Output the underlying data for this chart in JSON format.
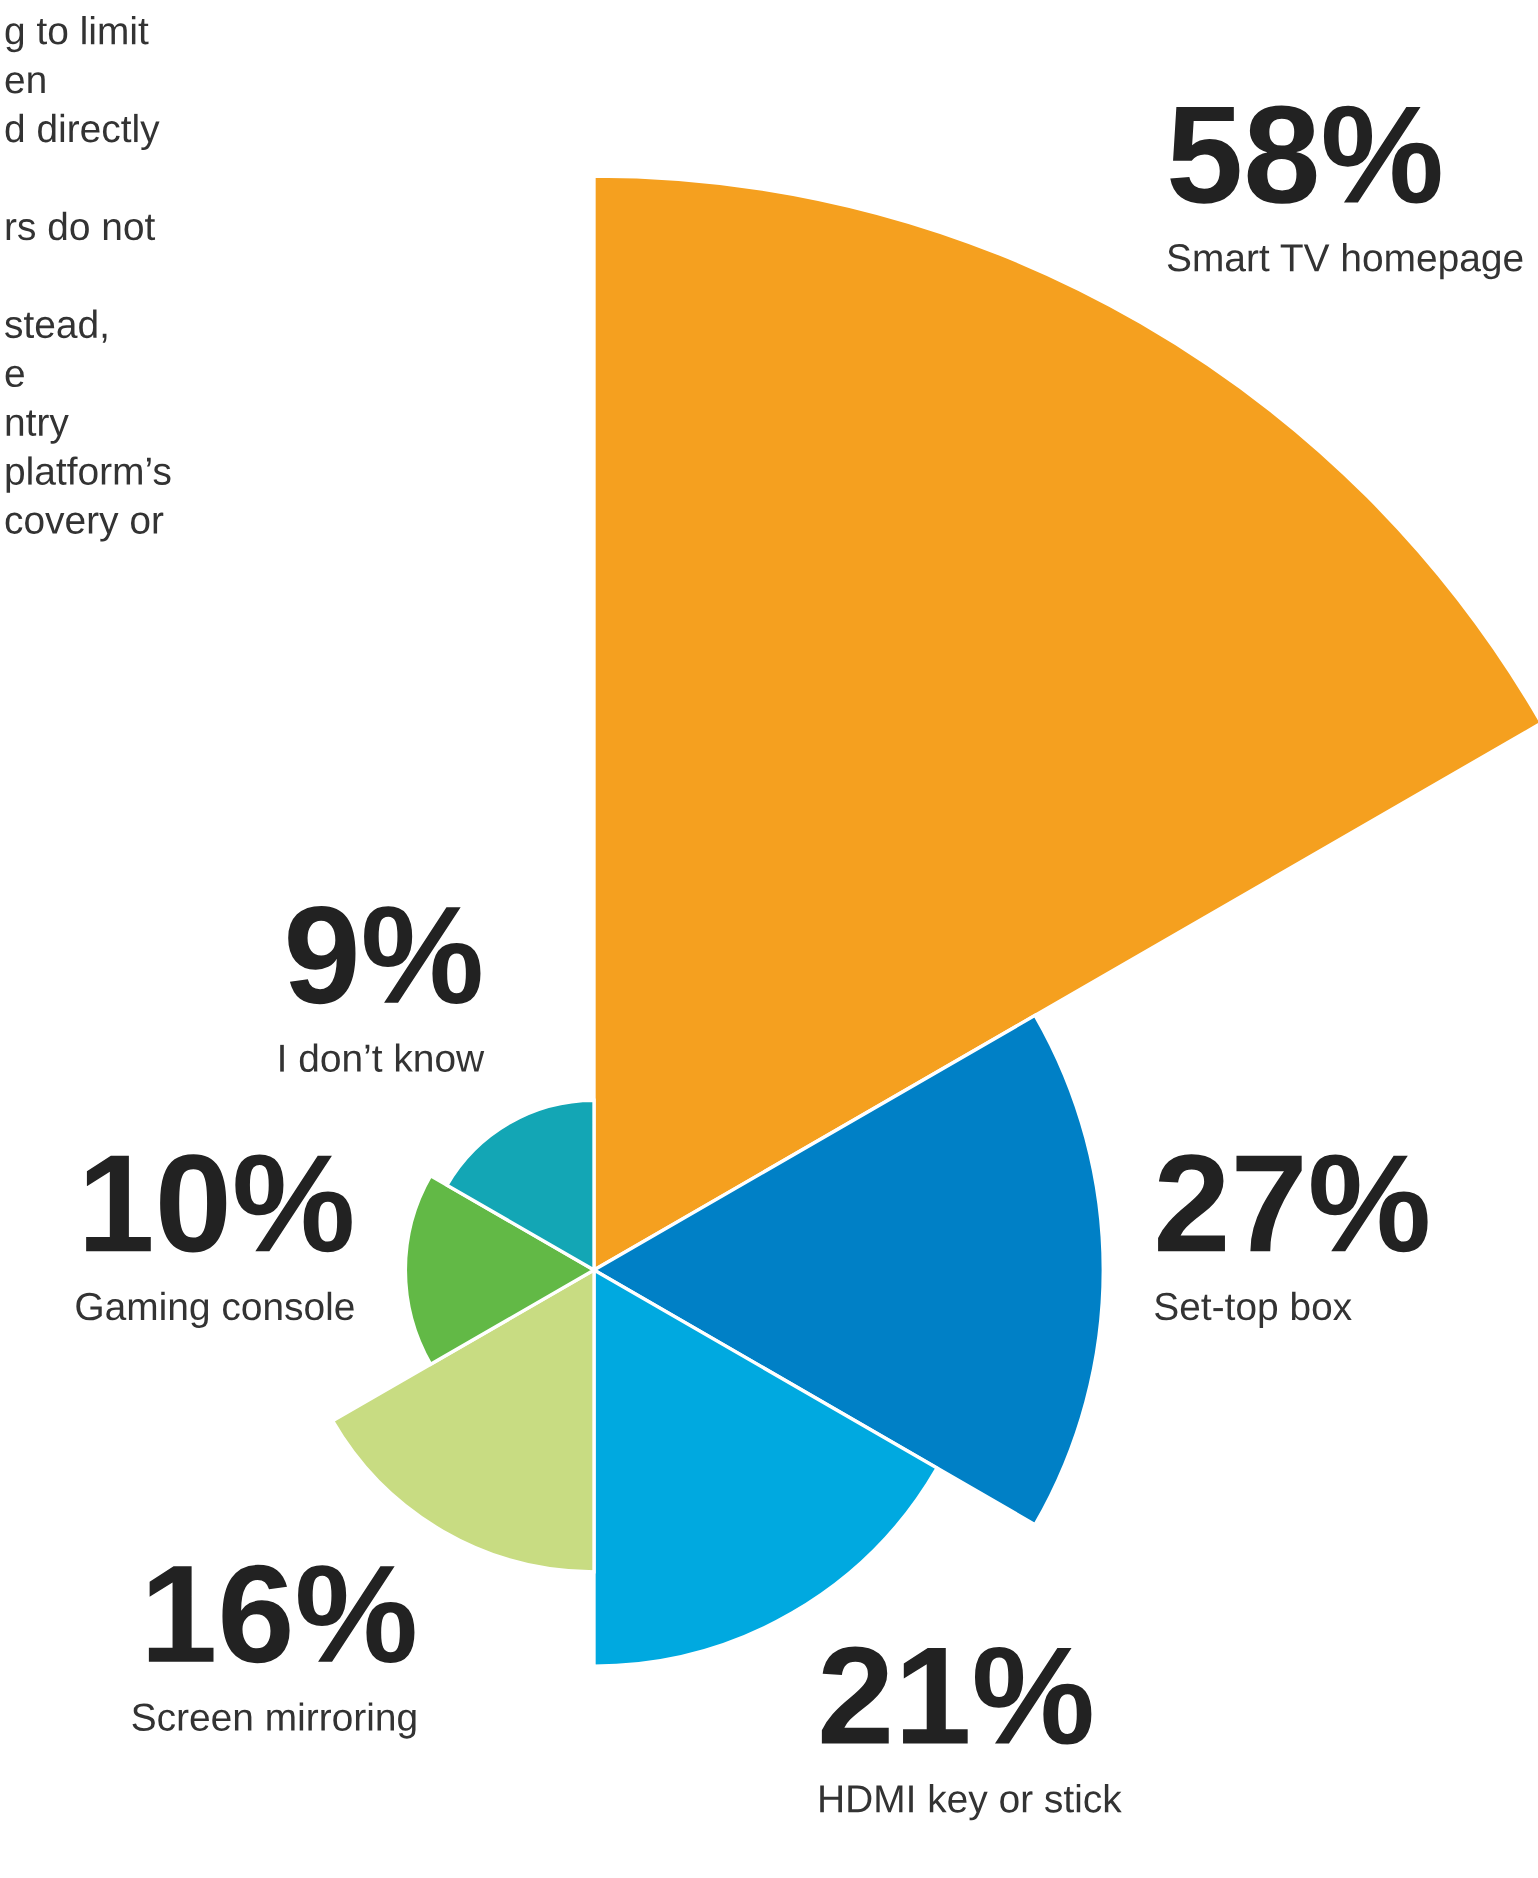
{
  "chart_data": {
    "type": "other",
    "categories": [
      "Smart TV homepage",
      "Set-top box",
      "HDMI key or stick",
      "Screen mirroring",
      "Gaming console",
      "I don’t know"
    ],
    "values": [
      58,
      27,
      21,
      16,
      10,
      9
    ],
    "value_labels": [
      "58%",
      "27%",
      "21%",
      "16%",
      "10%",
      "9%"
    ],
    "colors": [
      "#f5a01f",
      "#0080c6",
      "#00a9e0",
      "#c8dc82",
      "#62b946",
      "#13a6b5"
    ],
    "annotations": [
      "g to limit\nen\nd directly\n\nrs do not\n\nstead,\ne\nntry\nplatform’s\ncovery or"
    ]
  }
}
